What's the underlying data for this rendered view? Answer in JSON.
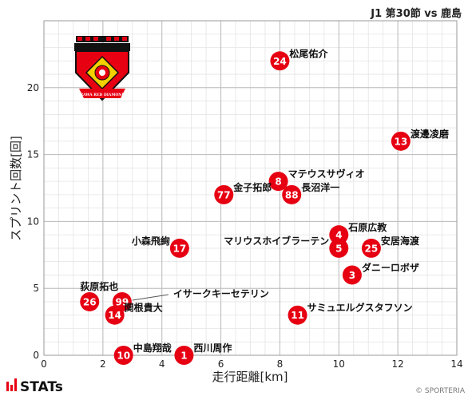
{
  "header": {
    "title": "J1 第30節 vs 鹿島"
  },
  "footer": {
    "brand": "STATs",
    "copyright": "© SPORTERIA"
  },
  "colors": {
    "marker": "#e60012",
    "marker_text": "#ffffff",
    "grid": "#bbbbbb",
    "minor_grid": "#e4e4e4"
  },
  "logo": {
    "icon": "urawa-red-diamonds-crest-icon",
    "text": "URAWA RED DIAMONDS"
  },
  "chart_data": {
    "type": "scatter",
    "xlabel": "走行距離[km]",
    "ylabel": "スプリント回数[回]",
    "xlim": [
      0,
      14
    ],
    "ylim": [
      0,
      25
    ],
    "xticks": [
      0,
      2,
      4,
      6,
      8,
      10,
      12,
      14
    ],
    "yticks": [
      0,
      5,
      10,
      15,
      20
    ],
    "grid": true,
    "points": [
      {
        "number": "24",
        "name": "松尾佑介",
        "x": 8.0,
        "y": 22,
        "label_pos": "right"
      },
      {
        "number": "13",
        "name": "渡邊凌磨",
        "x": 12.1,
        "y": 16,
        "label_pos": "right"
      },
      {
        "number": "8",
        "name": "マテウスサヴィオ",
        "x": 7.95,
        "y": 13,
        "label_pos": "right"
      },
      {
        "number": "77",
        "name": "金子拓郎",
        "x": 6.1,
        "y": 12,
        "label_pos": "right"
      },
      {
        "number": "88",
        "name": "長沼洋一",
        "x": 8.4,
        "y": 12,
        "label_pos": "right"
      },
      {
        "number": "4",
        "name": "石原広教",
        "x": 10.0,
        "y": 9,
        "label_pos": "right"
      },
      {
        "number": "17",
        "name": "小森飛絢",
        "x": 4.6,
        "y": 8,
        "label_pos": "left"
      },
      {
        "number": "5",
        "name": "マリウスホイブラーテン",
        "x": 10.0,
        "y": 8,
        "label_pos": "left"
      },
      {
        "number": "25",
        "name": "安居海渡",
        "x": 11.1,
        "y": 8,
        "label_pos": "right"
      },
      {
        "number": "3",
        "name": "ダニーロボザ",
        "x": 10.45,
        "y": 6,
        "label_pos": "right"
      },
      {
        "number": "26",
        "name": "荻原拓也",
        "x": 1.55,
        "y": 4,
        "label_pos": "above"
      },
      {
        "number": "99",
        "name": "イサークキーセテリン",
        "x": 2.65,
        "y": 4,
        "label_pos": "leader"
      },
      {
        "number": "14",
        "name": "関根貴大",
        "x": 2.4,
        "y": 3,
        "label_pos": "right"
      },
      {
        "number": "11",
        "name": "サミュエルグスタフソン",
        "x": 8.6,
        "y": 3,
        "label_pos": "right"
      },
      {
        "number": "10",
        "name": "中島翔哉",
        "x": 2.7,
        "y": 0,
        "label_pos": "right"
      },
      {
        "number": "1",
        "name": "西川周作",
        "x": 4.75,
        "y": 0,
        "label_pos": "right"
      }
    ]
  }
}
